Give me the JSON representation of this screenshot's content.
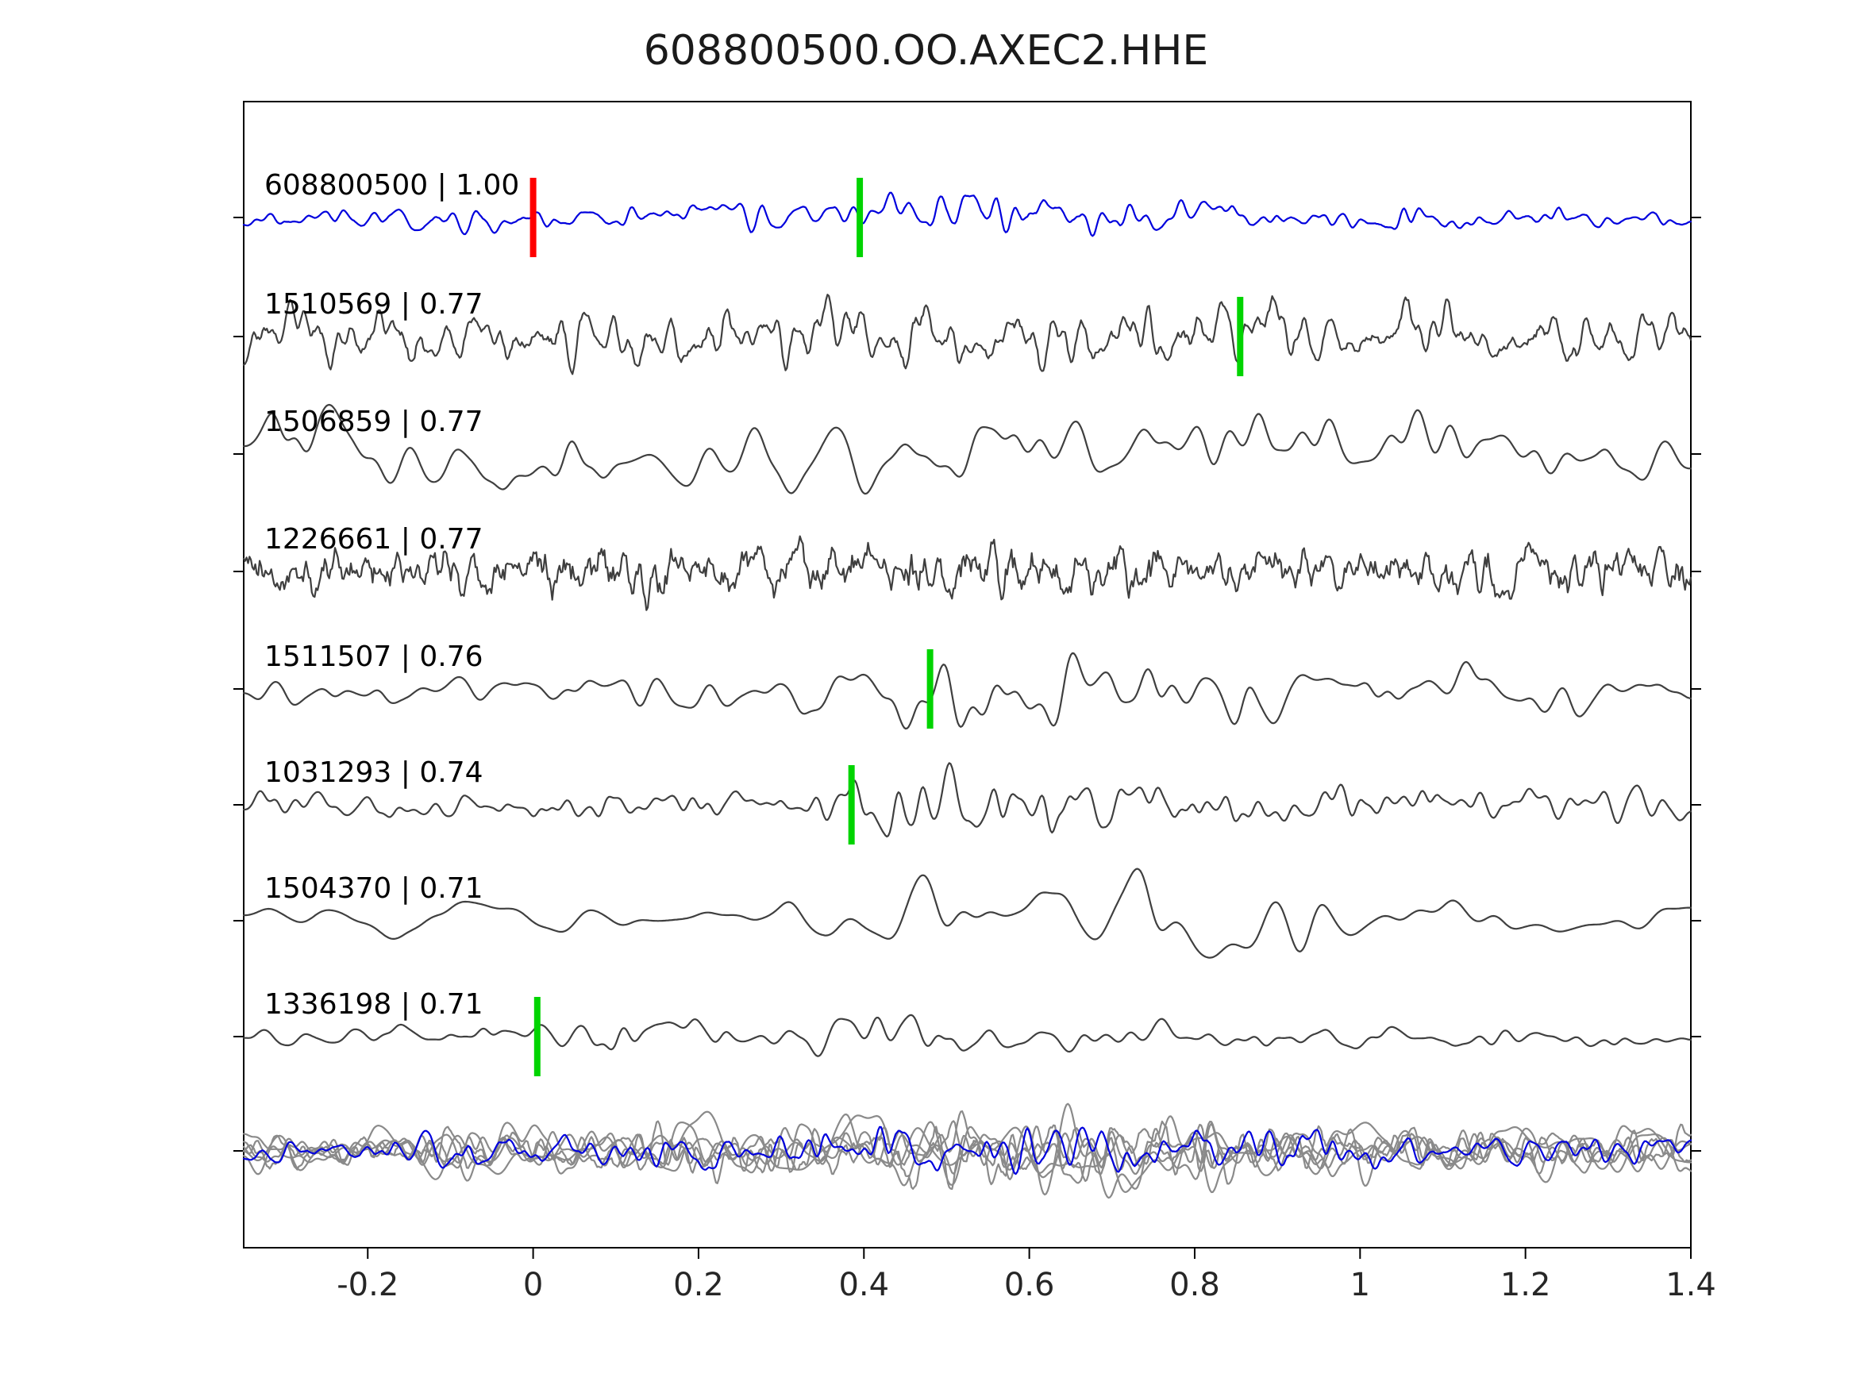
{
  "chart_data": {
    "type": "line",
    "title": "608800500.OO.AXEC2.HHE",
    "xlabel": "",
    "ylabel": "",
    "xlim": [
      -0.35,
      1.4
    ],
    "x_ticks": [
      -0.2,
      0,
      0.2,
      0.4,
      0.6,
      0.8,
      1,
      1.2,
      1.4
    ],
    "x_tick_labels": [
      "-0.2",
      "0",
      "0.2",
      "0.4",
      "0.6",
      "0.8",
      "1",
      "1.2",
      "1.4"
    ],
    "grid": false,
    "legend": null,
    "colors": {
      "template_trace": "#0000dd",
      "detection_trace": "#3f3f3f",
      "overlay_trace": "#8a8a8a",
      "pick_marker": "#00d400",
      "template_marker": "#ff0000",
      "axis": "#000000",
      "background": "#ffffff"
    },
    "traces": [
      {
        "id": "608800500",
        "correlation": "1.00",
        "label": "608800500 | 1.00",
        "color": "#0000dd",
        "markers": [
          {
            "x": 0.0,
            "color": "#ff0000"
          },
          {
            "x": 0.395,
            "color": "#00d400"
          }
        ],
        "seed": 17,
        "smooth": 3,
        "amp": 40,
        "env": [
          [
            -0.35,
            0.5
          ],
          [
            0.2,
            0.55
          ],
          [
            0.42,
            0.8
          ],
          [
            0.5,
            1.0
          ],
          [
            0.62,
            0.85
          ],
          [
            0.8,
            0.6
          ],
          [
            1.4,
            0.45
          ]
        ]
      },
      {
        "id": "1510569",
        "correlation": "0.77",
        "label": "1510569 | 0.77",
        "color": "#3f3f3f",
        "markers": [
          {
            "x": 0.855,
            "color": "#00d400"
          }
        ],
        "seed": 23,
        "smooth": 2,
        "amp": 55,
        "env": [
          [
            -0.35,
            0.85
          ],
          [
            0.4,
            1.0
          ],
          [
            1.4,
            0.85
          ]
        ]
      },
      {
        "id": "1506859",
        "correlation": "0.77",
        "label": "1506859 | 0.77",
        "color": "#3f3f3f",
        "markers": [],
        "seed": 31,
        "smooth": 16,
        "amp": 62,
        "env": [
          [
            -0.35,
            1.0
          ],
          [
            1.4,
            1.0
          ]
        ]
      },
      {
        "id": "1226661",
        "correlation": "0.77",
        "label": "1226661 | 0.77",
        "color": "#3f3f3f",
        "markers": [],
        "seed": 41,
        "smooth": 1,
        "amp": 55,
        "env": [
          [
            -0.35,
            0.75
          ],
          [
            0.55,
            1.0
          ],
          [
            0.8,
            0.8
          ],
          [
            1.4,
            0.85
          ]
        ]
      },
      {
        "id": "1511507",
        "correlation": "0.76",
        "label": "1511507 | 0.76",
        "color": "#3f3f3f",
        "markers": [
          {
            "x": 0.48,
            "color": "#00d400"
          }
        ],
        "seed": 47,
        "smooth": 12,
        "amp": 62,
        "env": [
          [
            -0.35,
            0.4
          ],
          [
            0.3,
            0.5
          ],
          [
            0.45,
            1.0
          ],
          [
            0.65,
            1.0
          ],
          [
            0.95,
            0.7
          ],
          [
            1.4,
            0.5
          ]
        ]
      },
      {
        "id": "1031293",
        "correlation": "0.74",
        "label": "1031293 | 0.74",
        "color": "#3f3f3f",
        "markers": [
          {
            "x": 0.385,
            "color": "#00d400"
          }
        ],
        "seed": 53,
        "smooth": 4,
        "amp": 55,
        "env": [
          [
            -0.35,
            0.35
          ],
          [
            0.3,
            0.55
          ],
          [
            0.42,
            1.0
          ],
          [
            0.7,
            0.85
          ],
          [
            1.1,
            0.6
          ],
          [
            1.4,
            0.5
          ]
        ]
      },
      {
        "id": "1504370",
        "correlation": "0.71",
        "label": "1504370 | 0.71",
        "color": "#3f3f3f",
        "markers": [],
        "seed": 61,
        "smooth": 26,
        "amp": 72,
        "env": [
          [
            -0.35,
            0.3
          ],
          [
            0.35,
            0.45
          ],
          [
            0.5,
            1.0
          ],
          [
            0.75,
            0.9
          ],
          [
            1.1,
            0.45
          ],
          [
            1.4,
            0.35
          ]
        ]
      },
      {
        "id": "1336198",
        "correlation": "0.71",
        "label": "1336198 | 0.71",
        "color": "#3f3f3f",
        "markers": [
          {
            "x": 0.005,
            "color": "#00d400"
          }
        ],
        "seed": 71,
        "smooth": 8,
        "amp": 48,
        "env": [
          [
            -0.35,
            0.35
          ],
          [
            0.04,
            0.45
          ],
          [
            0.1,
            1.0
          ],
          [
            0.22,
            0.5
          ],
          [
            0.45,
            0.95
          ],
          [
            0.62,
            0.5
          ],
          [
            1.4,
            0.3
          ]
        ]
      }
    ],
    "overlay": {
      "traces": [
        {
          "seed": 101,
          "smooth": 2,
          "amp": 55,
          "color": "#8a8a8a"
        },
        {
          "seed": 103,
          "smooth": 8,
          "amp": 60,
          "color": "#8a8a8a"
        },
        {
          "seed": 107,
          "smooth": 3,
          "amp": 50,
          "color": "#8a8a8a"
        },
        {
          "seed": 109,
          "smooth": 14,
          "amp": 65,
          "color": "#8a8a8a"
        },
        {
          "seed": 113,
          "smooth": 2,
          "amp": 45,
          "color": "#8a8a8a"
        },
        {
          "seed": 127,
          "smooth": 5,
          "amp": 55,
          "color": "#8a8a8a"
        },
        {
          "seed": 131,
          "smooth": 3,
          "amp": 42,
          "color": "#0000dd"
        }
      ],
      "env": [
        [
          -0.35,
          0.5
        ],
        [
          0.3,
          0.8
        ],
        [
          0.45,
          1.0
        ],
        [
          0.75,
          1.0
        ],
        [
          1.1,
          0.7
        ],
        [
          1.4,
          0.6
        ]
      ]
    }
  }
}
